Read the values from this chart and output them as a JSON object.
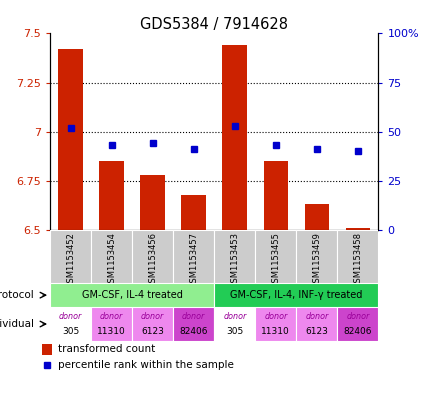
{
  "title": "GDS5384 / 7914628",
  "samples": [
    "GSM1153452",
    "GSM1153454",
    "GSM1153456",
    "GSM1153457",
    "GSM1153453",
    "GSM1153455",
    "GSM1153459",
    "GSM1153458"
  ],
  "red_values": [
    7.42,
    6.85,
    6.78,
    6.68,
    7.44,
    6.85,
    6.63,
    6.51
  ],
  "blue_values": [
    7.02,
    6.93,
    6.94,
    6.91,
    7.03,
    6.93,
    6.91,
    6.9
  ],
  "ylim_left": [
    6.5,
    7.5
  ],
  "ylim_right": [
    0,
    100
  ],
  "yticks_left": [
    6.5,
    6.75,
    7.0,
    7.25,
    7.5
  ],
  "yticks_right": [
    0,
    25,
    50,
    75,
    100
  ],
  "ytick_labels_left": [
    "6.5",
    "6.75",
    "7",
    "7.25",
    "7.5"
  ],
  "ytick_labels_right": [
    "0",
    "25",
    "50",
    "75",
    "100%"
  ],
  "hgrid_values": [
    6.75,
    7.0,
    7.25
  ],
  "protocol_labels": [
    "GM-CSF, IL-4 treated",
    "GM-CSF, IL-4, INF-γ treated"
  ],
  "protocol_colors": [
    "#90ee90",
    "#22cc55"
  ],
  "individual_names": [
    "305",
    "11310",
    "6123",
    "82406",
    "305",
    "11310",
    "6123",
    "82406"
  ],
  "individual_colors": [
    "#ffffff",
    "#ee88ee",
    "#ee88ee",
    "#cc44cc",
    "#ffffff",
    "#ee88ee",
    "#ee88ee",
    "#cc44cc"
  ],
  "bar_color": "#cc2200",
  "dot_color": "#0000cc",
  "bar_bottom": 6.5,
  "sample_bg": "#cccccc",
  "legend_red_label": "transformed count",
  "legend_blue_label": "percentile rank within the sample"
}
